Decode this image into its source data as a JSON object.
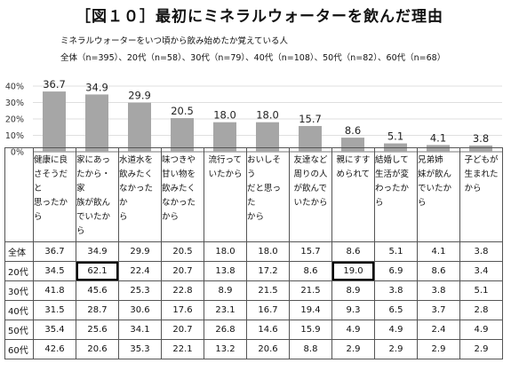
{
  "title": "［図１０］最初にミネラルウォーターを飲んだ理由",
  "subtitle": "ミネラルウォーターをいつ頃から飲み始めたか覚えている人",
  "legend_line": "全体（n=395）、20代（n=58）、30代（n=79）、40代（n=108）、50代（n=82）、60代（n=68）",
  "colors": {
    "bar": "#a6a6a6",
    "axis": "#777777",
    "grid": "#bfbfbf",
    "highlight_border": "#000000"
  },
  "chart_data": {
    "type": "bar",
    "title": "［図１０］最初にミネラルウォーターを飲んだ理由",
    "categories": [
      "健康に良さそうだと思ったから",
      "家にあったから・家族が飲んでいたから",
      "水道水を飲みたくなかったから",
      "味つきや甘い物を飲みたくなかったから",
      "流行っていたから",
      "おいしそうだと思ったから",
      "友達など周りの人が飲んでいたから",
      "親にすすめられて",
      "結婚して生活が変わったから",
      "兄弟姉妹が飲んでいたから",
      "子どもが生まれたから"
    ],
    "header_lines": [
      [
        "健康に良",
        "さそうだと",
        "思ったから"
      ],
      [
        "家にあっ",
        "たから・家",
        "族が飲ん",
        "でいたから"
      ],
      [
        "水道水を",
        "飲みたく",
        "なかったか",
        "ら"
      ],
      [
        "味つきや",
        "甘い物を",
        "飲みたく",
        "なかったから"
      ],
      [
        "流行って",
        "いたから"
      ],
      [
        "おいしそう",
        "だと思った",
        "から"
      ],
      [
        "友達など",
        "周りの人",
        "が飲んで",
        "いたから"
      ],
      [
        "親にすす",
        "められて"
      ],
      [
        "結婚して",
        "生活が変",
        "わったから"
      ],
      [
        "兄弟姉",
        "妹が飲ん",
        "でいたから"
      ],
      [
        "子どもが",
        "生まれた",
        "から"
      ]
    ],
    "values": [
      36.7,
      34.9,
      29.9,
      20.5,
      18.0,
      18.0,
      15.7,
      8.6,
      5.1,
      4.1,
      3.8
    ],
    "value_labels": [
      "36.7",
      "34.9",
      "29.9",
      "20.5",
      "18.0",
      "18.0",
      "15.7",
      "8.6",
      "5.1",
      "4.1",
      "3.8"
    ],
    "ylim": [
      0,
      40
    ],
    "yticks": [
      "0%",
      "10%",
      "20%",
      "30%",
      "40%"
    ],
    "grid": true,
    "table": {
      "rows": [
        {
          "label": "全体",
          "values": [
            "36.7",
            "34.9",
            "29.9",
            "20.5",
            "18.0",
            "18.0",
            "15.7",
            "8.6",
            "5.1",
            "4.1",
            "3.8"
          ]
        },
        {
          "label": "20代",
          "values": [
            "34.5",
            "62.1",
            "22.4",
            "20.7",
            "13.8",
            "17.2",
            "8.6",
            "19.0",
            "6.9",
            "8.6",
            "3.4"
          ]
        },
        {
          "label": "30代",
          "values": [
            "41.8",
            "45.6",
            "25.3",
            "22.8",
            "8.9",
            "21.5",
            "21.5",
            "8.9",
            "3.8",
            "3.8",
            "5.1"
          ]
        },
        {
          "label": "40代",
          "values": [
            "31.5",
            "28.7",
            "30.6",
            "17.6",
            "23.1",
            "16.7",
            "19.4",
            "9.3",
            "6.5",
            "3.7",
            "2.8"
          ]
        },
        {
          "label": "50代",
          "values": [
            "35.4",
            "25.6",
            "34.1",
            "20.7",
            "26.8",
            "14.6",
            "15.9",
            "4.9",
            "4.9",
            "2.4",
            "4.9"
          ]
        },
        {
          "label": "60代",
          "values": [
            "42.6",
            "20.6",
            "35.3",
            "22.1",
            "13.2",
            "20.6",
            "8.8",
            "2.9",
            "2.9",
            "2.9",
            "2.9"
          ]
        }
      ],
      "highlighted_cells": [
        {
          "row": 1,
          "col": 1
        },
        {
          "row": 1,
          "col": 7
        }
      ]
    }
  }
}
